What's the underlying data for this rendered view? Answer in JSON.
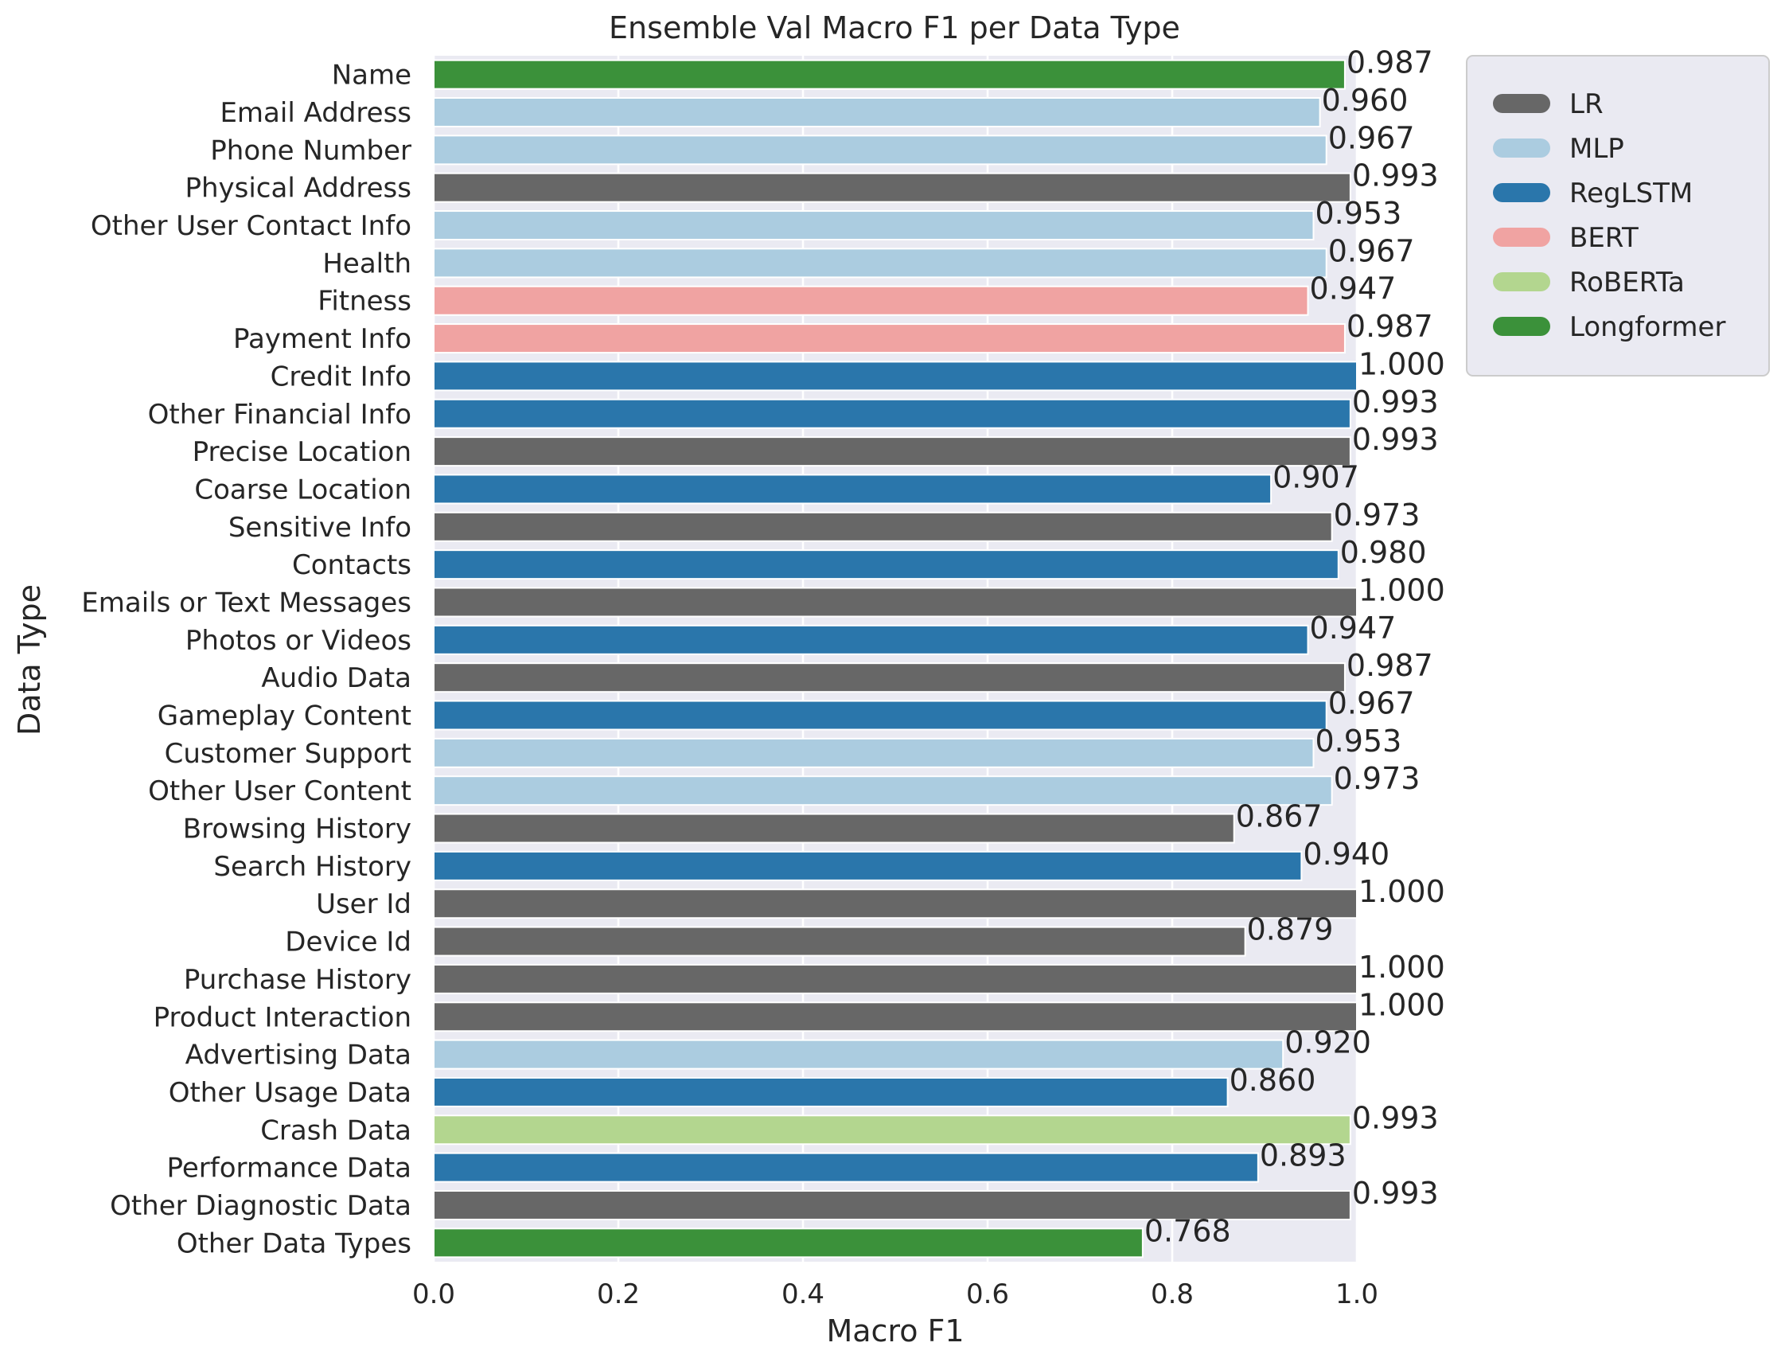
{
  "chart_data": {
    "type": "bar",
    "orientation": "horizontal",
    "title": "Ensemble Val Macro F1 per Data Type",
    "xlabel": "Macro F1",
    "ylabel": "Data Type",
    "xlim": [
      0.0,
      1.0
    ],
    "xticks": [
      "0.0",
      "0.2",
      "0.4",
      "0.6",
      "0.8",
      "1.0"
    ],
    "grid": true,
    "legend_position": "outside-top-right",
    "legend": [
      {
        "name": "LR",
        "color": "#676767"
      },
      {
        "name": "MLP",
        "color": "#abcce0"
      },
      {
        "name": "RegLSTM",
        "color": "#2a76ab"
      },
      {
        "name": "BERT",
        "color": "#f0a3a2"
      },
      {
        "name": "RoBERTa",
        "color": "#b3d68f"
      },
      {
        "name": "Longformer",
        "color": "#3b913a"
      }
    ],
    "categories": [
      "Name",
      "Email Address",
      "Phone Number",
      "Physical Address",
      "Other User Contact Info",
      "Health",
      "Fitness",
      "Payment Info",
      "Credit Info",
      "Other Financial Info",
      "Precise Location",
      "Coarse Location",
      "Sensitive Info",
      "Contacts",
      "Emails or Text Messages",
      "Photos or Videos",
      "Audio Data",
      "Gameplay Content",
      "Customer Support",
      "Other User Content",
      "Browsing History",
      "Search History",
      "User Id",
      "Device Id",
      "Purchase History",
      "Product Interaction",
      "Advertising Data",
      "Other Usage Data",
      "Crash Data",
      "Performance Data",
      "Other Diagnostic Data",
      "Other Data Types"
    ],
    "values": [
      0.987,
      0.96,
      0.967,
      0.993,
      0.953,
      0.967,
      0.947,
      0.987,
      1.0,
      0.993,
      0.993,
      0.907,
      0.973,
      0.98,
      1.0,
      0.947,
      0.987,
      0.967,
      0.953,
      0.973,
      0.867,
      0.94,
      1.0,
      0.879,
      1.0,
      1.0,
      0.92,
      0.86,
      0.993,
      0.893,
      0.993,
      0.768
    ],
    "value_labels": [
      "0.987",
      "0.960",
      "0.967",
      "0.993",
      "0.953",
      "0.967",
      "0.947",
      "0.987",
      "1.000",
      "0.993",
      "0.993",
      "0.907",
      "0.973",
      "0.980",
      "1.000",
      "0.947",
      "0.987",
      "0.967",
      "0.953",
      "0.973",
      "0.867",
      "0.940",
      "1.000",
      "0.879",
      "1.000",
      "1.000",
      "0.920",
      "0.860",
      "0.993",
      "0.893",
      "0.993",
      "0.768"
    ],
    "models": [
      "Longformer",
      "MLP",
      "MLP",
      "LR",
      "MLP",
      "MLP",
      "BERT",
      "BERT",
      "RegLSTM",
      "RegLSTM",
      "LR",
      "RegLSTM",
      "LR",
      "RegLSTM",
      "LR",
      "RegLSTM",
      "LR",
      "RegLSTM",
      "MLP",
      "MLP",
      "LR",
      "RegLSTM",
      "LR",
      "LR",
      "LR",
      "LR",
      "MLP",
      "RegLSTM",
      "RoBERTa",
      "RegLSTM",
      "LR",
      "Longformer"
    ]
  },
  "colors": {
    "plot_background": "#eaeaf2",
    "grid": "#ffffff",
    "text": "#262626",
    "legend_background": "#eaeaf2",
    "legend_border": "#cccccc"
  }
}
